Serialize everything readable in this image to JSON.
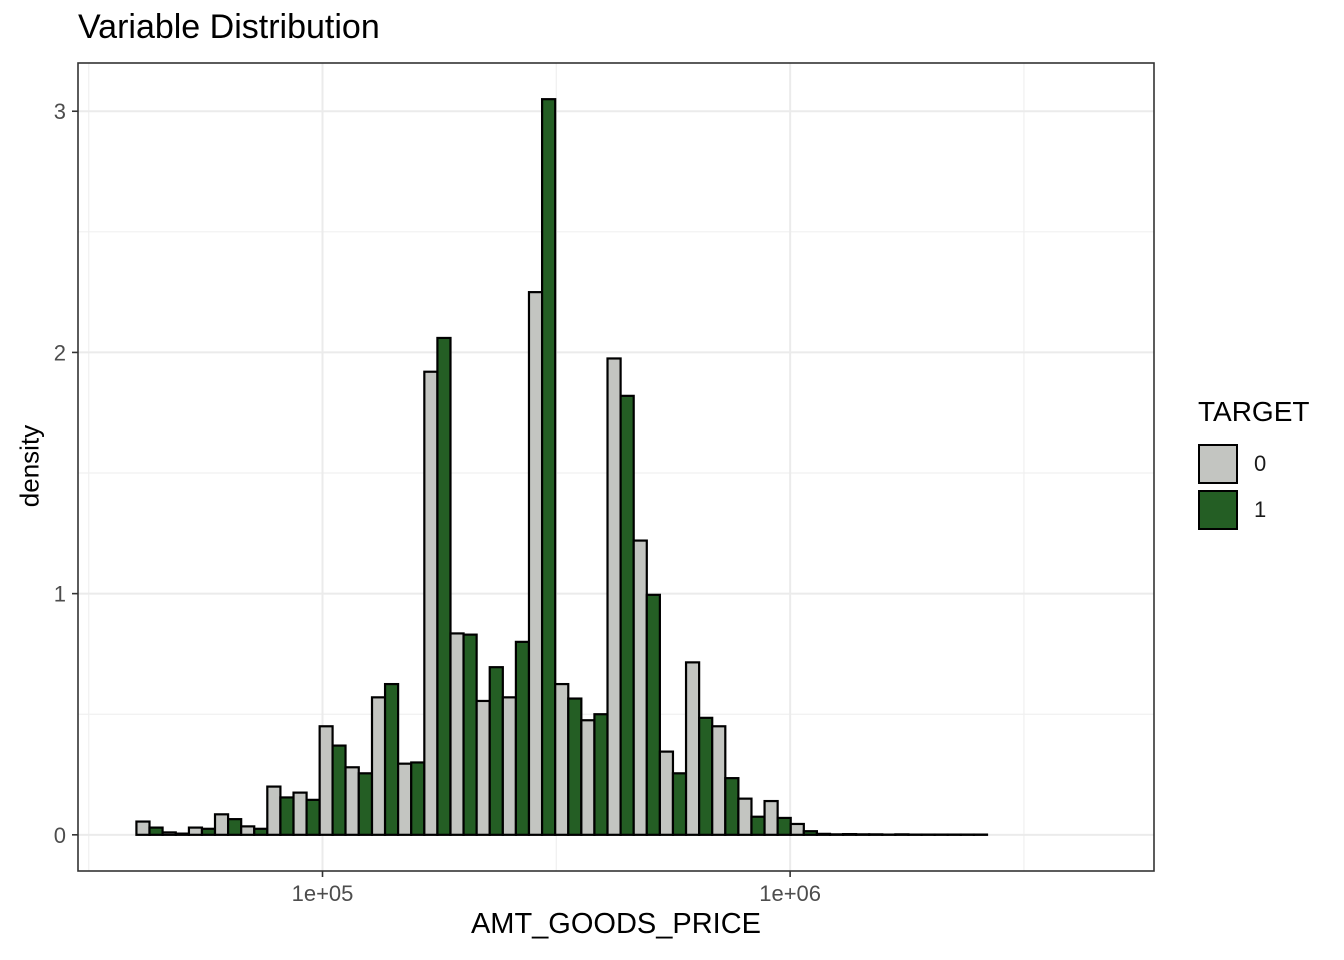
{
  "chart_data": {
    "type": "bar",
    "title": "Variable Distribution",
    "xlabel": "AMT_GOODS_PRICE",
    "ylabel": "density",
    "x_scale": "log10",
    "xlim": [
      30000,
      6000000
    ],
    "ylim": [
      -0.15,
      3.2
    ],
    "x_ticks": [
      {
        "value": 100000,
        "label": "1e+05"
      },
      {
        "value": 1000000,
        "label": "1e+06"
      }
    ],
    "y_ticks": [
      {
        "value": 0,
        "label": "0"
      },
      {
        "value": 1,
        "label": "1"
      },
      {
        "value": 2,
        "label": "2"
      },
      {
        "value": 3,
        "label": "3"
      }
    ],
    "grid": true,
    "legend": {
      "title": "TARGET",
      "position": "right"
    },
    "bin_edges": [
      40000,
      45500,
      51800,
      58900,
      67000,
      76200,
      86700,
      98600,
      112000,
      127600,
      145100,
      165100,
      187800,
      213600,
      243000,
      276400,
      314500,
      357700,
      406900,
      462900,
      526600,
      599000,
      681400,
      775100,
      881700,
      1003000,
      1141000,
      1298000,
      1476000,
      1679000,
      1910000,
      2173000,
      2472000,
      2812000,
      3199000,
      3639000,
      4140000,
      4709000,
      5356000
    ],
    "series": [
      {
        "name": "0",
        "color": "#c3c5c1",
        "values": [
          0.055,
          0.01,
          0.03,
          0.085,
          0.035,
          0.2,
          0.175,
          0.45,
          0.28,
          0.57,
          0.295,
          1.92,
          0.835,
          0.555,
          0.57,
          2.25,
          0.625,
          0.475,
          1.975,
          1.22,
          0.345,
          0.715,
          0.45,
          0.15,
          0.14,
          0.045,
          0.004,
          0.003,
          0.002,
          0.002,
          0.001,
          0.001,
          0.001,
          0.0,
          0.0,
          0.0,
          0.0,
          0.0
        ]
      },
      {
        "name": "1",
        "color": "#245e24",
        "values": [
          0.03,
          0.005,
          0.025,
          0.065,
          0.025,
          0.155,
          0.145,
          0.37,
          0.255,
          0.625,
          0.3,
          2.06,
          0.83,
          0.695,
          0.8,
          3.05,
          0.565,
          0.5,
          1.82,
          0.995,
          0.255,
          0.485,
          0.235,
          0.075,
          0.07,
          0.015,
          0.002,
          0.002,
          0.001,
          0.001,
          0.001,
          0.001,
          0.0,
          0.0,
          0.0,
          0.0,
          0.0,
          0.0
        ]
      }
    ]
  }
}
